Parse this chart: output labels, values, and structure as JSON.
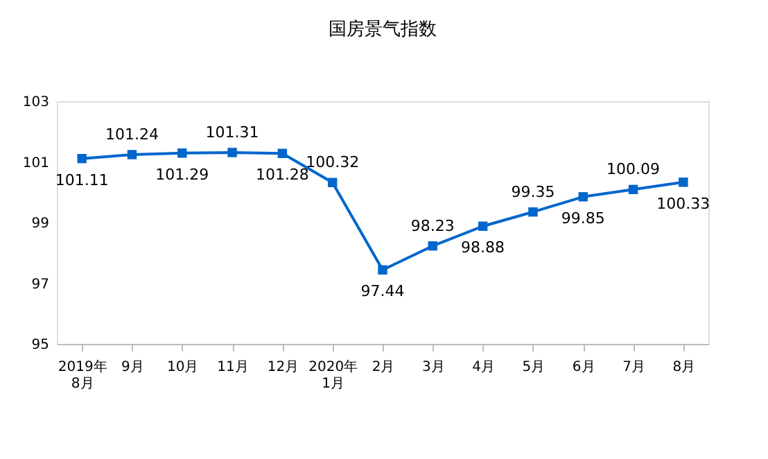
{
  "chart_data": {
    "type": "line",
    "title": "国房景气指数",
    "categories": [
      "2019年\n8月",
      "9月",
      "10月",
      "11月",
      "12月",
      "2020年\n1月",
      "2月",
      "3月",
      "4月",
      "5月",
      "6月",
      "7月",
      "8月"
    ],
    "series": [
      {
        "color": "#0066cc",
        "values": [
          101.11,
          101.24,
          101.29,
          101.31,
          101.28,
          100.32,
          97.44,
          98.23,
          98.88,
          99.35,
          99.85,
          100.09,
          100.33
        ]
      }
    ],
    "ylim": [
      95,
      103
    ],
    "yticks": [
      95,
      97,
      99,
      101,
      103
    ],
    "grid": false,
    "marker": "square",
    "line_style": "solid",
    "data_labels": true
  }
}
